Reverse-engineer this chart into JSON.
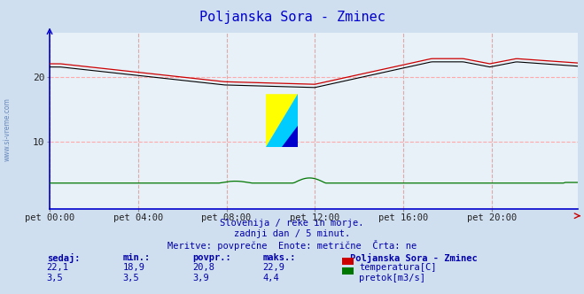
{
  "title": "Poljanska Sora - Zminec",
  "title_color": "#0000cc",
  "bg_color": "#d0dff0",
  "plot_bg_color": "#e8f0f8",
  "grid_color_h": "#ffaaaa",
  "grid_color_v": "#ddaaaa",
  "x_tick_labels": [
    "pet 00:00",
    "pet 04:00",
    "pet 08:00",
    "pet 12:00",
    "pet 16:00",
    "pet 20:00"
  ],
  "x_tick_positions": [
    0,
    48,
    96,
    144,
    192,
    240
  ],
  "total_points": 288,
  "ylim": [
    -0.5,
    27
  ],
  "yticks": [
    10,
    20
  ],
  "temp_color": "#cc0000",
  "flow_color": "#007700",
  "height_color": "#000000",
  "axis_color": "#0000cc",
  "watermark_color": "#aabbdd",
  "footer_line1": "Slovenija / reke in morje.",
  "footer_line2": "zadnji dan / 5 minut.",
  "footer_line3": "Meritve: povprečne  Enote: metrične  Črta: ne",
  "footer_color": "#0000aa",
  "table_header": [
    "sedaj:",
    "min.:",
    "povpr.:",
    "maks.:"
  ],
  "table_header2": "Poljanska Sora - Zminec",
  "table_row1": [
    "22,1",
    "18,9",
    "20,8",
    "22,9"
  ],
  "table_row2": [
    "3,5",
    "3,5",
    "3,9",
    "4,4"
  ],
  "table_color": "#0000aa",
  "label_temp": "temperatura[C]",
  "label_flow": "pretok[m3/s]",
  "sidebar_text": "www.si-vreme.com",
  "sidebar_color": "#6688bb",
  "logo_yellow": "#ffff00",
  "logo_cyan": "#00ccff",
  "logo_darkblue": "#0000cc"
}
